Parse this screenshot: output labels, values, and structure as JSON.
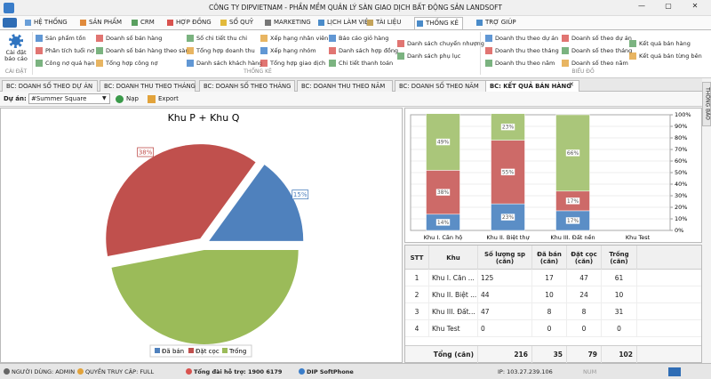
{
  "title_bar": {
    "title": "CÔNG TY DIPVIETNAM - PHẦN MỀM QUẢN LÝ SÀN GIAO DỊCH BẤT ĐỘNG SẢN LANDSOFT"
  },
  "ribbon": {
    "tabs": [
      "HỆ THỐNG",
      "SẢN PHẨM",
      "CRM",
      "HỢP ĐỒNG",
      "SỔ QUỸ",
      "MARKETING",
      "LỊCH LÀM VIỆC",
      "TÀI LIỆU",
      "THỐNG KÊ",
      "TRỢ GIÚP"
    ],
    "groups": [
      {
        "label": "CÀI ĐẶT",
        "buttons": [
          "Cài đặt báo cáo"
        ]
      },
      {
        "label": "THỐNG KÊ",
        "columns": [
          [
            "Sản phẩm tồn",
            "Phân tích tuổi nợ",
            "Công nợ quá hạn"
          ],
          [
            "Doanh số bán hàng",
            "Doanh số bán hàng theo sàn",
            "Tổng hợp công nợ"
          ],
          [
            "Số chi tiết thu chi",
            "Tổng hợp doanh thu",
            "Danh sách khách hàng"
          ],
          [
            "Xếp hạng nhân viên",
            "Xếp hạng nhóm",
            "Tổng hợp giao dịch"
          ],
          [
            "Báo cáo giỏ hàng",
            "Danh sách hợp đồng",
            "Chi tiết thanh toán"
          ],
          [
            "Danh sách chuyển nhượng",
            "Danh sách phụ lục"
          ]
        ]
      },
      {
        "label": "BIỂU ĐỒ",
        "columns": [
          [
            "Doanh thu theo dự án",
            "Doanh thu theo tháng",
            "Doanh thu theo năm"
          ],
          [
            "Doanh số theo dự án",
            "Doanh số theo tháng",
            "Doanh số theo năm"
          ],
          [
            "Kết quả bán hàng",
            "Kết quả bán từng bên"
          ]
        ]
      }
    ]
  },
  "doc_tabs": [
    "BC: DOANH SỐ THEO DỰ ÁN",
    "BC: DOANH THU THEO THÁNG",
    "BC: DOANH SỐ THEO THÁNG",
    "BC: DOANH THU THEO NĂM",
    "BC: DOANH SỐ THEO NĂM",
    "BC: KẾT QUẢ BÁN HÀNG"
  ],
  "side_tab": "THÔNG BÁO",
  "toolbar": {
    "project_label": "Dự án:",
    "project": "#Summer Square",
    "load": "Nạp",
    "export": "Export"
  },
  "pie_chart": {
    "title": "Khu P + Khu Q",
    "labels": [
      "Đã bán",
      "Đặt cọc",
      "Trống"
    ],
    "values": [
      15,
      38,
      47
    ],
    "value_labels": [
      "15%",
      "38%",
      "47%"
    ],
    "colors": [
      "#4f81bd",
      "#c0504d",
      "#9bbb59"
    ]
  },
  "bar_chart": {
    "categories": [
      "Khu I. Căn hộ",
      "Khu II. Biệt thự",
      "Khu III. Đất nền",
      "Khu Test"
    ],
    "series": [
      {
        "color": "#5b8ec6",
        "values": [
          14,
          23,
          17,
          null
        ],
        "value_labels": [
          "14%",
          "23%",
          "17%",
          null
        ]
      },
      {
        "color": "#cd6a68",
        "values": [
          38,
          55,
          17,
          null
        ],
        "value_labels": [
          "38%",
          "55%",
          "17%",
          null
        ]
      },
      {
        "color": "#aac67a",
        "values": [
          49,
          23,
          66,
          null
        ],
        "value_labels": [
          "49%",
          "23%",
          "66%",
          null
        ]
      }
    ],
    "ylim": [
      0,
      100
    ],
    "yticks": [
      {
        "value": 0,
        "label": "0%"
      },
      {
        "value": 10,
        "label": "10%"
      },
      {
        "value": 20,
        "label": "20%"
      },
      {
        "value": 30,
        "label": "30%"
      },
      {
        "value": 40,
        "label": "40%"
      },
      {
        "value": 50,
        "label": "50%"
      },
      {
        "value": 60,
        "label": "60%"
      },
      {
        "value": 70,
        "label": "70%"
      },
      {
        "value": 80,
        "label": "80%"
      },
      {
        "value": 90,
        "label": "90%"
      },
      {
        "value": 100,
        "label": "100%"
      }
    ]
  },
  "table": {
    "headers": [
      "STT",
      "Khu",
      "Số lượng sp (căn)",
      "Đã bán (căn)",
      "Đặt cọc (căn)",
      "Trống (căn)"
    ],
    "rows": [
      [
        1,
        "Khu I. Căn ...",
        125,
        17,
        47,
        61
      ],
      [
        2,
        "Khu II. Biệt ...",
        44,
        10,
        24,
        10
      ],
      [
        3,
        "Khu III. Đất...",
        47,
        8,
        8,
        31
      ],
      [
        4,
        "Khu Test",
        0,
        0,
        0,
        0
      ]
    ],
    "footer": [
      "Tổng (căn)",
      216,
      35,
      79,
      102
    ]
  },
  "status_bar": {
    "user": "NGƯỜI DÙNG: ADMIN",
    "access": "QUYỀN TRUY CẬP: FULL",
    "hotline": "Tổng đài hỗ trợ: 1900 6179",
    "softphone": "DIP SoftPhone",
    "ip": "IP: 103.27.239.106",
    "num": "NUM"
  }
}
